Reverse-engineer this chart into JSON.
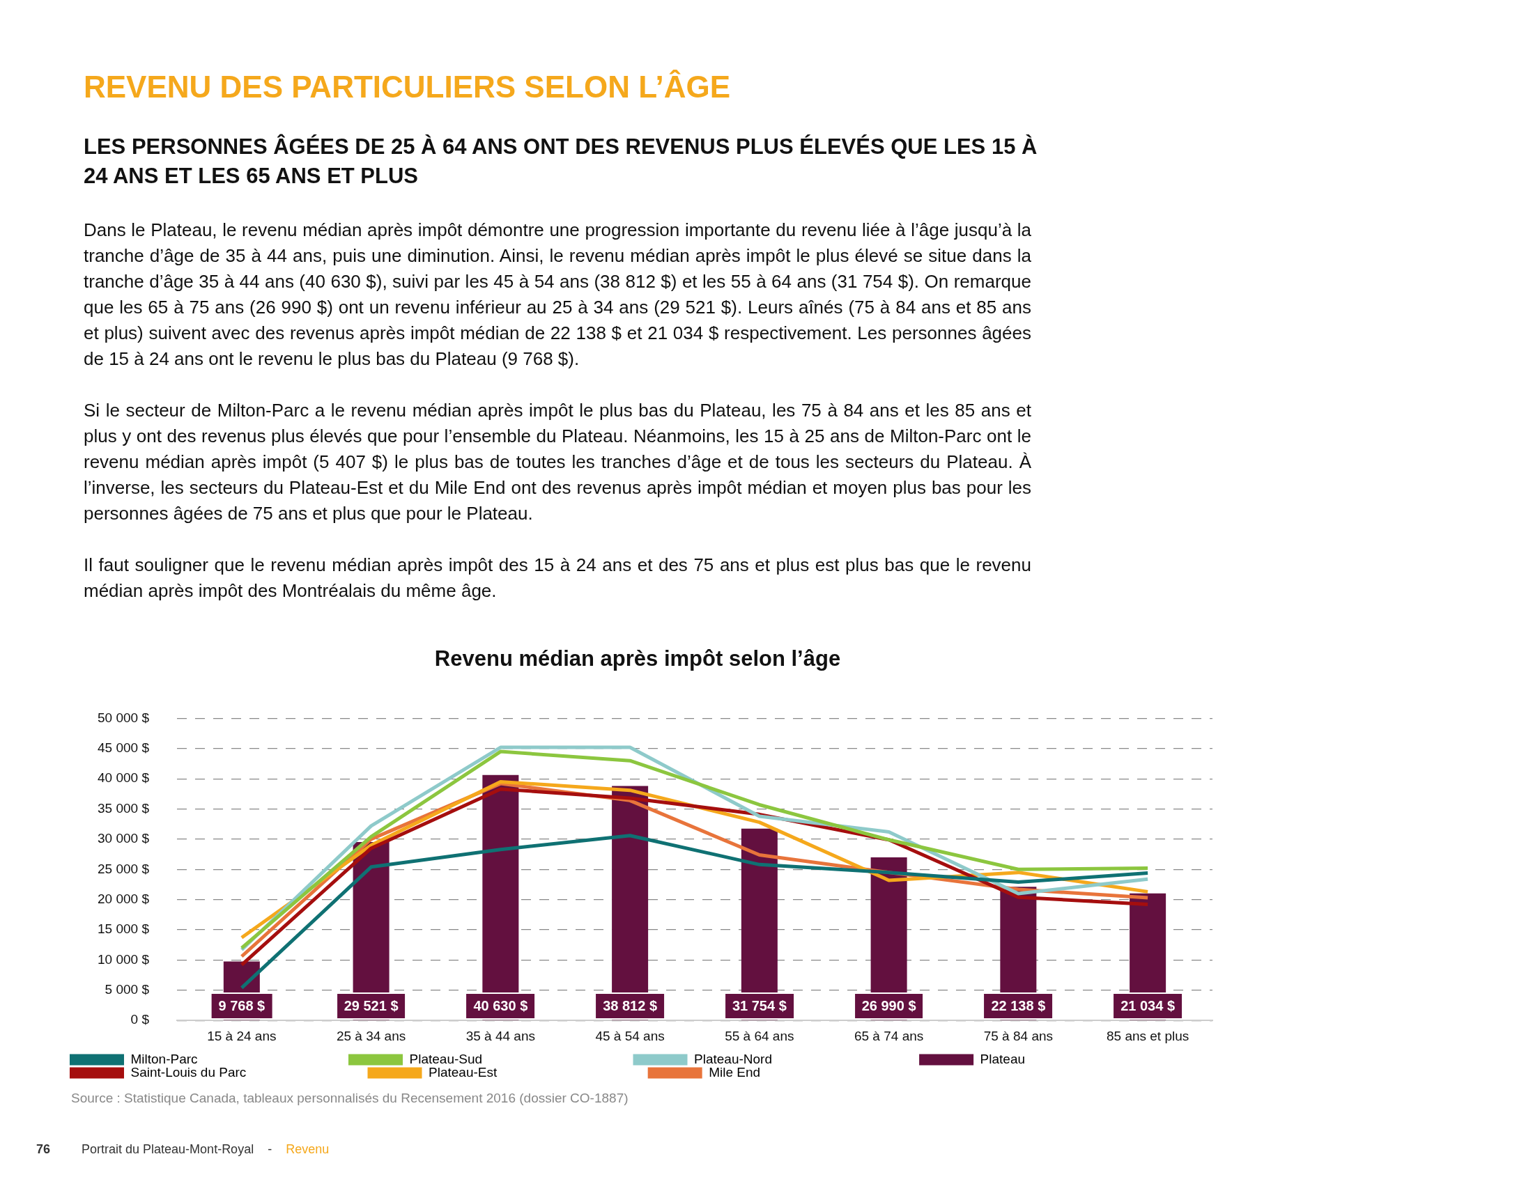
{
  "chart_data": {
    "type": "line",
    "title": "REVENU DES PARTICULIERS SELON L’ÂGE",
    "subtitle": "LES PERSONNES ÂGÉES DE 25 À 64 ANS ONT DES REVENUS PLUS ÉLEVÉS QUE LES 15 À 24 ANS ET LES 65 ANS ET PLUS",
    "annotations": [
      "Dans le Plateau, le revenu médian après impôt démontre une progression importante du revenu liée à l’âge jusqu’à la tranche d’âge de 35 à 44 ans, puis une diminution. Ainsi, le revenu médian après impôt le plus élevé se situe dans la tranche d’âge 35 à 44 ans (40 630 $), suivi par les 45 à 54 ans (38 812 $) et les 55 à 64 ans (31 754 $). On remarque que les 65 à 75 ans (26 990 $) ont un revenu inférieur au 25 à 34 ans (29 521 $). Leurs aînés (75 à 84 ans et 85 ans et plus) suivent avec des revenus après impôt médian de 22 138 $ et 21 034 $ respectivement. Les personnes âgées de 15 à 24 ans ont le revenu le plus bas du Plateau (9 768 $).",
      "Si le secteur de Milton-Parc a le revenu médian après impôt le plus bas du Plateau, les 75 à 84 ans et les 85 ans et plus y ont des revenus plus élevés que pour l’ensemble du Plateau. Néanmoins, les 15 à 25 ans de Milton-Parc ont le revenu médian après impôt (5 407 $) le plus bas de toutes les tranches d’âge et de tous les secteurs du Plateau. À l’inverse, les secteurs du Plateau-Est et du Mile End ont des revenus après impôt médian et moyen plus bas pour les personnes âgées de 75 ans et plus que pour le Plateau.",
      "Il faut souligner que le revenu médian après impôt des 15 à 24 ans et des 75 ans et plus est plus bas que le revenu médian après impôt des Montréalais du même âge.",
      "Revenu médian après impôt selon l’âge",
      "Source : Statistique Canada, tableaux personnalisés du Recensement 2016 (dossier CO-1887)",
      "76",
      "Portrait du Plateau-Mont-Royal",
      "-",
      "Revenu"
    ],
    "categories": [
      "15 à 24 ans",
      "25 à 34 ans",
      "35 à 44 ans",
      "45 à 54 ans",
      "55 à 64 ans",
      "65 à 74 ans",
      "75 à 84 ans",
      "85 ans et plus"
    ],
    "series": [
      {
        "name": "Milton-Parc",
        "color": "#0f7173",
        "values": [
          5400,
          25400,
          28300,
          30600,
          25800,
          24500,
          22900,
          24400
        ]
      },
      {
        "name": "Plateau-Sud",
        "color": "#8cc63f",
        "values": [
          12000,
          30400,
          44500,
          43000,
          35700,
          29900,
          25000,
          25200
        ]
      },
      {
        "name": "Plateau-Nord",
        "color": "#8ecaca",
        "values": [
          11700,
          32200,
          45200,
          45200,
          33800,
          31200,
          21000,
          23400
        ]
      },
      {
        "name": "Plateau",
        "color": "#63103f",
        "type": "bar",
        "values": [
          9768,
          29521,
          40630,
          38812,
          31754,
          26990,
          22138,
          21034
        ],
        "value_labels": [
          "9 768 $",
          "29 521 $",
          "40 630 $",
          "38 812 $",
          "31 754 $",
          "26 990 $",
          "22 138 $",
          "21 034 $"
        ]
      },
      {
        "name": "Saint-Louis du Parc",
        "color": "#a50e0e",
        "values": [
          9200,
          28500,
          38300,
          36800,
          34100,
          29900,
          20400,
          19200
        ]
      },
      {
        "name": "Plateau-Est",
        "color": "#f5a81c",
        "values": [
          13700,
          29000,
          39500,
          38100,
          32800,
          23200,
          24500,
          21300
        ]
      },
      {
        "name": "Mile End",
        "color": "#e8743b",
        "values": [
          10600,
          30000,
          39200,
          36400,
          27400,
          24500,
          21700,
          20300
        ]
      }
    ],
    "ylim": [
      0,
      50000
    ],
    "yticks": [
      {
        "value": 0,
        "label": "0 $"
      },
      {
        "value": 5000,
        "label": "5 000 $"
      },
      {
        "value": 10000,
        "label": "10 000 $"
      },
      {
        "value": 15000,
        "label": "15 000 $"
      },
      {
        "value": 20000,
        "label": "20 000 $"
      },
      {
        "value": 25000,
        "label": "25 000 $"
      },
      {
        "value": 30000,
        "label": "30 000 $"
      },
      {
        "value": 35000,
        "label": "35 000 $"
      },
      {
        "value": 40000,
        "label": "40 000 $"
      },
      {
        "value": 45000,
        "label": "45 000 $"
      },
      {
        "value": 50000,
        "label": "50 000 $"
      }
    ],
    "grid": "y",
    "legend": "bottom",
    "marker": "none",
    "line_style": "solid"
  }
}
